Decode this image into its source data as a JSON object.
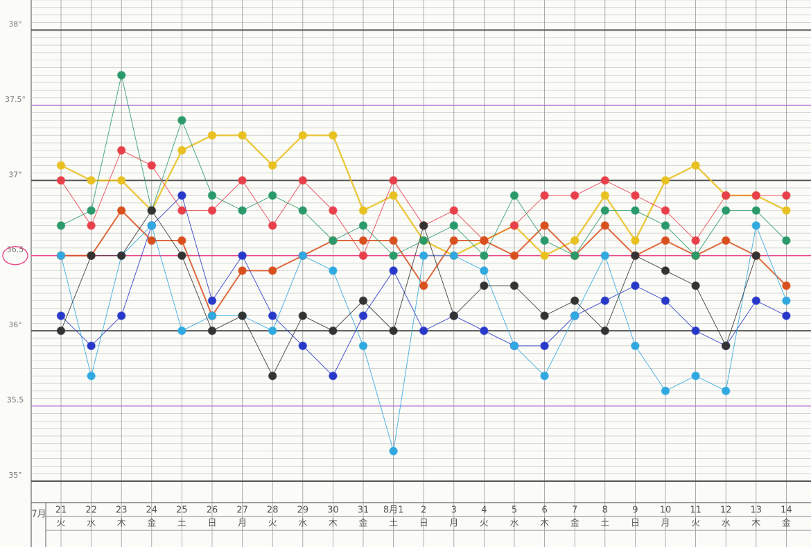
{
  "chart_data": {
    "type": "line",
    "month_label": "7月",
    "categories": [
      "21",
      "22",
      "23",
      "24",
      "25",
      "26",
      "27",
      "28",
      "29",
      "30",
      "31",
      "8月1",
      "2",
      "3",
      "4",
      "5",
      "6",
      "7",
      "8",
      "9",
      "10",
      "11",
      "12",
      "13",
      "14"
    ],
    "weekdays": [
      "火",
      "水",
      "木",
      "金",
      "土",
      "日",
      "月",
      "火",
      "水",
      "木",
      "金",
      "土",
      "日",
      "月",
      "火",
      "水",
      "木",
      "金",
      "土",
      "日",
      "月",
      "火",
      "水",
      "木",
      "金"
    ],
    "ylim": [
      35,
      38.2
    ],
    "yticks": [
      {
        "value": 35,
        "label": "35°"
      },
      {
        "value": 35.5,
        "label": "35.5"
      },
      {
        "value": 36,
        "label": "36°"
      },
      {
        "value": 36.5,
        "label": "36.5"
      },
      {
        "value": 37,
        "label": "37°"
      },
      {
        "value": 37.5,
        "label": "37.5°"
      },
      {
        "value": 38,
        "label": "38°"
      }
    ],
    "grid": true,
    "series": [
      {
        "color": "#e8c020",
        "values": [
          37.1,
          37.0,
          37.0,
          36.8,
          37.2,
          37.3,
          37.3,
          37.1,
          37.3,
          37.3,
          36.8,
          36.9,
          36.6,
          36.5,
          36.6,
          36.7,
          36.5,
          36.6,
          36.9,
          36.6,
          37.0,
          37.1,
          36.9,
          36.9,
          36.8
        ]
      },
      {
        "color": "#e8404a",
        "values": [
          37.0,
          36.7,
          37.2,
          37.1,
          36.8,
          36.8,
          37.0,
          36.7,
          37.0,
          36.8,
          36.5,
          37.0,
          36.7,
          36.8,
          36.6,
          36.7,
          36.9,
          36.9,
          37.0,
          36.9,
          36.8,
          36.6,
          36.9,
          36.9,
          36.9
        ]
      },
      {
        "color": "#d8501e",
        "values": [
          36.5,
          36.5,
          36.8,
          36.6,
          36.6,
          36.1,
          36.4,
          36.4,
          36.5,
          36.6,
          36.6,
          36.6,
          36.3,
          36.6,
          36.6,
          36.5,
          36.7,
          36.5,
          36.7,
          36.5,
          36.6,
          36.5,
          36.6,
          36.5,
          36.3
        ]
      },
      {
        "color": "#2a9a6a",
        "values": [
          36.7,
          36.8,
          37.7,
          36.8,
          37.4,
          36.9,
          36.8,
          36.9,
          36.8,
          36.6,
          36.7,
          36.5,
          36.6,
          36.7,
          36.5,
          36.9,
          36.6,
          36.5,
          36.8,
          36.8,
          36.7,
          36.5,
          36.8,
          36.8,
          36.6
        ]
      },
      {
        "color": "#2838c8",
        "values": [
          36.1,
          35.9,
          36.1,
          36.7,
          36.9,
          36.2,
          36.5,
          36.1,
          35.9,
          35.7,
          36.1,
          36.4,
          36.0,
          36.1,
          36.0,
          35.9,
          35.9,
          36.1,
          36.2,
          36.3,
          36.2,
          36.0,
          35.9,
          36.2,
          36.1
        ]
      },
      {
        "color": "#30a8e0",
        "values": [
          36.5,
          35.7,
          36.5,
          36.7,
          36.0,
          36.1,
          36.1,
          36.0,
          36.5,
          36.4,
          35.9,
          35.2,
          36.5,
          36.5,
          36.4,
          35.9,
          35.7,
          36.1,
          36.5,
          35.9,
          35.6,
          35.7,
          35.6,
          36.7,
          36.2
        ]
      },
      {
        "color": "#333333",
        "values": [
          36.0,
          36.5,
          36.5,
          36.8,
          36.5,
          36.0,
          36.1,
          35.7,
          36.1,
          36.0,
          36.2,
          36.0,
          36.7,
          36.1,
          36.3,
          36.3,
          36.1,
          36.2,
          36.0,
          36.5,
          36.4,
          36.3,
          35.9,
          36.5,
          null
        ]
      }
    ]
  }
}
